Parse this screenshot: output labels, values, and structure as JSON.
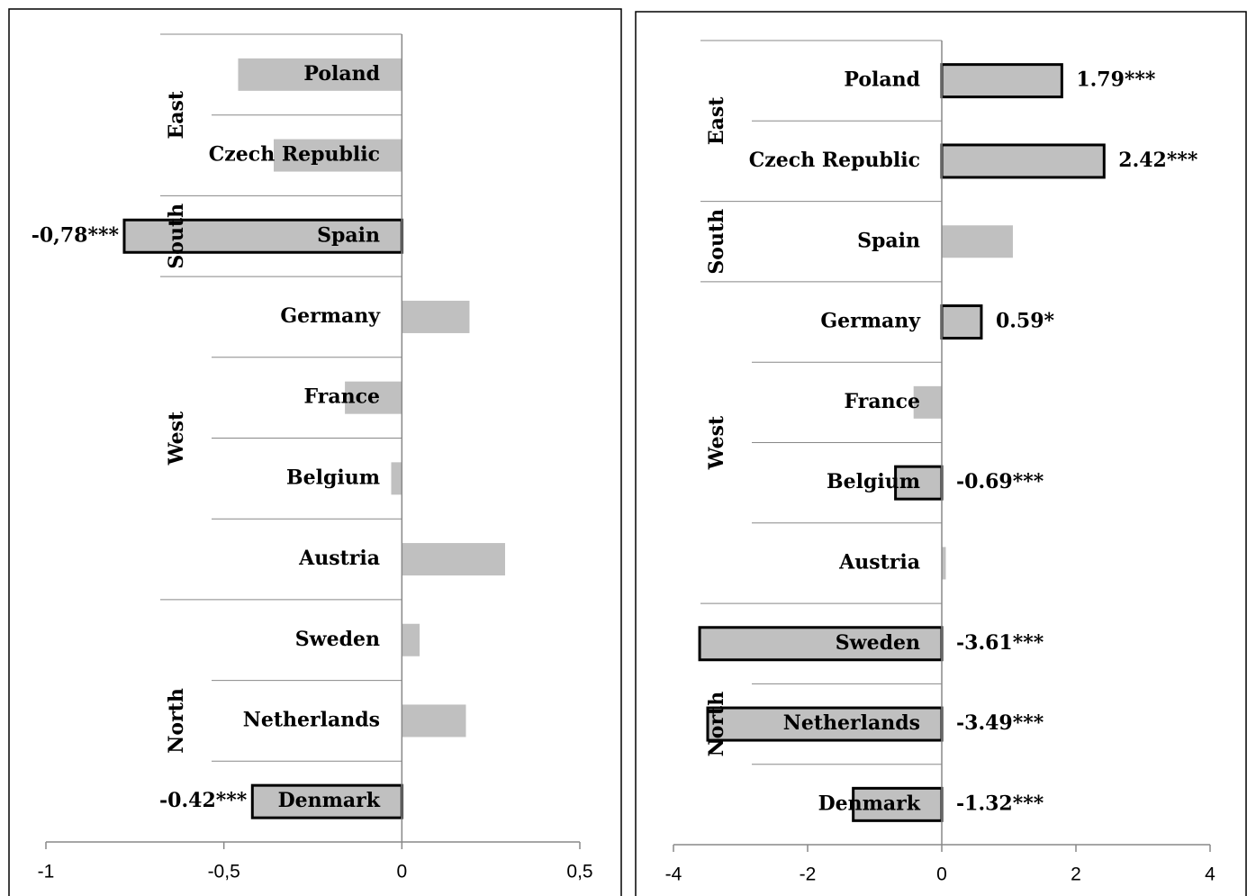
{
  "chart_data": [
    {
      "type": "bar",
      "orientation": "horizontal",
      "categories": [
        "Poland",
        "Czech Republic",
        "Spain",
        "Germany",
        "France",
        "Belgium",
        "Austria",
        "Sweden",
        "Netherlands",
        "Denmark"
      ],
      "groups": [
        {
          "name": "East",
          "count": 2
        },
        {
          "name": "South",
          "count": 1
        },
        {
          "name": "West",
          "count": 4
        },
        {
          "name": "North",
          "count": 3
        }
      ],
      "values": [
        -0.46,
        -0.36,
        -0.78,
        0.19,
        -0.16,
        -0.03,
        0.29,
        0.05,
        0.18,
        -0.42
      ],
      "value_labels": [
        null,
        null,
        "-0,78***",
        null,
        null,
        null,
        null,
        null,
        null,
        "-0.42***"
      ],
      "outlined": [
        false,
        false,
        true,
        false,
        false,
        false,
        false,
        false,
        false,
        true
      ],
      "color": "#c0c0c0",
      "xlim": [
        -1,
        0.5
      ],
      "xticks": [
        -1,
        {
          "value": -0.5,
          "label": "-0,5"
        },
        0,
        {
          "value": 0.5,
          "label": "0,5"
        }
      ]
    },
    {
      "type": "bar",
      "orientation": "horizontal",
      "categories": [
        "Poland",
        "Czech Republic",
        "Spain",
        "Germany",
        "France",
        "Belgium",
        "Austria",
        "Sweden",
        "Netherlands",
        "Denmark"
      ],
      "groups": [
        {
          "name": "East",
          "count": 2
        },
        {
          "name": "South",
          "count": 1
        },
        {
          "name": "West",
          "count": 4
        },
        {
          "name": "North",
          "count": 3
        }
      ],
      "values": [
        1.79,
        2.42,
        1.06,
        0.59,
        -0.42,
        -0.69,
        0.06,
        -3.61,
        -3.49,
        -1.32
      ],
      "value_labels": [
        "1.79***",
        "2.42***",
        null,
        "0.59*",
        null,
        "-0.69***",
        null,
        "-3.61***",
        "-3.49***",
        "-1.32***"
      ],
      "outlined": [
        true,
        true,
        false,
        true,
        false,
        true,
        false,
        true,
        true,
        true
      ],
      "color": "#c0c0c0",
      "xlim": [
        -4,
        4
      ],
      "xticks": [
        -4,
        -2,
        0,
        2,
        4
      ]
    }
  ]
}
